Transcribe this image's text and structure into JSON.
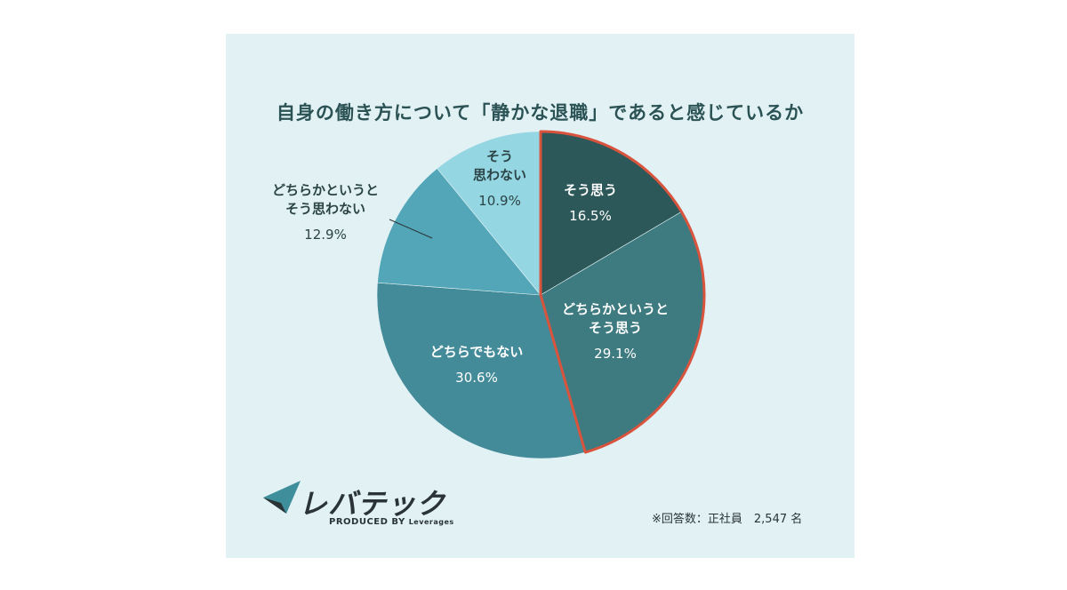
{
  "chart_data": {
    "type": "pie",
    "title": "自身の働き方について「静かな退職」であると感じているか",
    "slices": [
      {
        "label_lines": [
          "そう思う"
        ],
        "value": 16.5,
        "value_label": "16.5%",
        "color": "#2d5859",
        "highlighted": true
      },
      {
        "label_lines": [
          "どちらかというと",
          "そう思う"
        ],
        "value": 29.1,
        "value_label": "29.1%",
        "color": "#3e7b80",
        "highlighted": true
      },
      {
        "label_lines": [
          "どちらでもない"
        ],
        "value": 30.6,
        "value_label": "30.6%",
        "color": "#448b99",
        "highlighted": false
      },
      {
        "label_lines": [
          "どちらかというと",
          "そう思わない"
        ],
        "value": 12.9,
        "value_label": "12.9%",
        "color": "#52a6b7",
        "highlighted": false
      },
      {
        "label_lines": [
          "そう",
          "思わない"
        ],
        "value": 10.9,
        "value_label": "10.9%",
        "color": "#94d6e2",
        "highlighted": false
      }
    ],
    "highlight_color": "#d9533d",
    "start": "12 o'clock",
    "direction": "clockwise"
  },
  "logo": {
    "name": "レバテック",
    "tagline_prefix": "PRODUCED BY ",
    "tagline_brand": "Leverages",
    "mark_colors": [
      "#2a3436",
      "#3e8e9b"
    ]
  },
  "footnote": "※回答数：正社員　2,547 名",
  "colors": {
    "background": "#e1f1f4",
    "title": "#2b5254"
  }
}
